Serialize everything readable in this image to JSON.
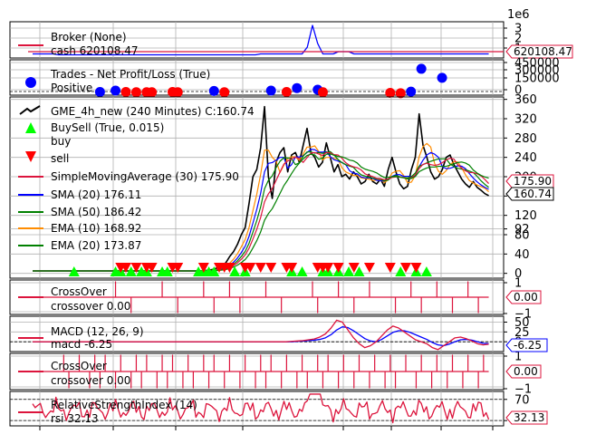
{
  "colors": {
    "broker": "#dc143c",
    "broker_value": "#0000ff",
    "trades_pos": "#0000ff",
    "trades_neg": "#ff0000",
    "close": "#000000",
    "buy": "#00ff00",
    "sell": "#ff0000",
    "sma30": "#dc143c",
    "sma20": "#0000ff",
    "sma50": "#008000",
    "ema10": "#ff8c00",
    "ema20": "#008000",
    "crossover": "#dc143c",
    "macd": "#dc143c",
    "macd_signal": "#0000ff",
    "rsi": "#dc143c",
    "grid": "#b0b0b0"
  },
  "chart_data": [
    {
      "type": "line",
      "panel": "broker",
      "legend": [
        "Broker (None)",
        "cash 620108.47"
      ],
      "offset_label": "1e6",
      "yticks": [
        "3",
        "2",
        "1"
      ],
      "ylim": [
        0,
        3.5
      ],
      "last_value_tag": "620108.47",
      "series": [
        {
          "name": "cash",
          "values_note": "flat ~0.62 (1e6) with spike near idx 54",
          "baseline": 0.62
        }
      ]
    },
    {
      "type": "scatter",
      "panel": "trades",
      "legend": [
        "Trades - Net Profit/Loss (True)",
        "Positive"
      ],
      "yticks": [
        "450000",
        "300000",
        "150000",
        "0"
      ],
      "ylim": [
        -50000,
        500000
      ],
      "positive": [
        {
          "x": 13,
          "y": 0
        },
        {
          "x": 16,
          "y": 20000
        },
        {
          "x": 35,
          "y": 15000
        },
        {
          "x": 46,
          "y": 20000
        },
        {
          "x": 51,
          "y": 60000
        },
        {
          "x": 55,
          "y": 35000
        },
        {
          "x": 73,
          "y": 5000
        },
        {
          "x": 75,
          "y": 360000
        },
        {
          "x": 79,
          "y": 220000
        }
      ],
      "negative": [
        {
          "x": 18,
          "y": 0
        },
        {
          "x": 20,
          "y": -5000
        },
        {
          "x": 22,
          "y": -5000
        },
        {
          "x": 23,
          "y": -5000
        },
        {
          "x": 27,
          "y": 0
        },
        {
          "x": 28,
          "y": -5000
        },
        {
          "x": 37,
          "y": -5000
        },
        {
          "x": 49,
          "y": 0
        },
        {
          "x": 56,
          "y": -5000
        },
        {
          "x": 69,
          "y": -15000
        },
        {
          "x": 71,
          "y": -20000
        }
      ]
    },
    {
      "type": "line",
      "panel": "main",
      "legend": [
        {
          "label": "GME_4h_new (240 Minutes) C:160.74",
          "kind": "line",
          "color_key": "close"
        },
        {
          "label": "BuySell (True, 0.015)",
          "kind": "tri-up",
          "color_key": "buy"
        },
        {
          "label": "buy",
          "kind": "none"
        },
        {
          "label": "sell",
          "kind": "tri-down",
          "color_key": "sell"
        },
        {
          "label": "SimpleMovingAverage (30) 175.90",
          "kind": "line",
          "color_key": "sma30"
        },
        {
          "label": "SMA (20) 176.11",
          "kind": "line",
          "color_key": "sma20"
        },
        {
          "label": "SMA (50) 186.42",
          "kind": "line",
          "color_key": "sma50"
        },
        {
          "label": "EMA (10) 168.92",
          "kind": "line",
          "color_key": "ema10"
        },
        {
          "label": "EMA (20) 173.87",
          "kind": "line",
          "color_key": "ema20"
        }
      ],
      "yticks": [
        "360",
        "320",
        "280",
        "240",
        "200",
        "160",
        "120",
        "92",
        "80",
        "40",
        "0"
      ],
      "ytick_values": [
        360,
        320,
        280,
        240,
        200,
        160,
        120,
        92,
        80,
        40,
        0
      ],
      "ylim": [
        -10,
        365
      ],
      "last_value_tags": [
        "175.90",
        "160.74"
      ],
      "close": [
        5,
        5,
        5,
        5,
        5,
        5,
        5,
        5,
        5,
        5,
        5,
        5,
        5,
        5,
        5,
        5,
        5,
        5,
        5,
        5,
        5,
        5,
        5,
        5,
        5,
        5,
        5,
        5,
        5,
        5,
        5,
        5,
        5,
        5,
        5,
        5,
        5,
        5,
        5,
        5,
        5,
        5,
        5,
        5,
        5,
        6,
        7,
        9,
        12,
        16,
        22,
        35,
        45,
        60,
        80,
        95,
        145,
        200,
        215,
        260,
        345,
        200,
        155,
        230,
        250,
        260,
        210,
        245,
        250,
        230,
        265,
        300,
        250,
        240,
        220,
        230,
        270,
        240,
        210,
        225,
        200,
        205,
        195,
        210,
        200,
        185,
        190,
        205,
        190,
        185,
        195,
        180,
        215,
        240,
        210,
        185,
        175,
        180,
        215,
        240,
        330,
        265,
        240,
        210,
        195,
        200,
        215,
        240,
        245,
        225,
        210,
        195,
        185,
        178,
        190,
        178,
        172,
        165,
        160.74
      ],
      "buy": [
        8,
        16,
        17,
        19,
        21,
        22,
        25,
        26,
        32,
        33,
        34,
        35,
        39,
        41,
        50,
        52,
        56,
        57,
        59,
        61,
        63,
        71,
        74,
        76
      ],
      "sell": [
        17,
        18,
        20,
        22,
        23,
        27,
        28,
        33,
        36,
        37,
        38,
        41,
        42,
        44,
        46,
        49,
        50,
        55,
        56,
        57,
        59,
        62,
        65,
        69,
        72,
        74
      ]
    },
    {
      "type": "line",
      "panel": "crossover1",
      "legend": [
        "CrossOver",
        "crossover 0.00"
      ],
      "yticks": [
        "1",
        "−1"
      ],
      "ylim": [
        -1,
        1
      ],
      "last_value_tag": "0.00",
      "spikes_up": [
        16,
        25,
        33,
        38,
        45,
        54,
        59,
        65,
        73,
        78,
        84
      ],
      "spikes_down": [
        19,
        28,
        35,
        40,
        48,
        55,
        62,
        70,
        75,
        81,
        86
      ]
    },
    {
      "type": "line",
      "panel": "macd",
      "legend": [
        "MACD (12, 26, 9)",
        "macd -6.25"
      ],
      "yticks": [
        "50",
        "25",
        "0"
      ],
      "ylim": [
        -25,
        65
      ],
      "last_value_tag": "-6.25",
      "macd": [
        0,
        0,
        0,
        0,
        0,
        0,
        0,
        0,
        0,
        0,
        0,
        0,
        0,
        0,
        0,
        0,
        0,
        0,
        0,
        0,
        0,
        0,
        0,
        0,
        0,
        0,
        0,
        0,
        0,
        0,
        0,
        0,
        0,
        0,
        0,
        0,
        0,
        0,
        0,
        0,
        0,
        0,
        0,
        0,
        0,
        0,
        1,
        2,
        3,
        5,
        7,
        12,
        20,
        35,
        55,
        50,
        30,
        10,
        -5,
        -15,
        -10,
        0,
        15,
        30,
        40,
        35,
        25,
        15,
        5,
        0,
        -5,
        -15,
        -20,
        -10,
        0,
        10,
        12,
        8,
        2,
        -5,
        -8,
        -6.25
      ],
      "signal": [
        0,
        0,
        0,
        0,
        0,
        0,
        0,
        0,
        0,
        0,
        0,
        0,
        0,
        0,
        0,
        0,
        0,
        0,
        0,
        0,
        0,
        0,
        0,
        0,
        0,
        0,
        0,
        0,
        0,
        0,
        0,
        0,
        0,
        0,
        0,
        0,
        0,
        0,
        0,
        0,
        0,
        0,
        0,
        0,
        0,
        0,
        0,
        1,
        2,
        3,
        4,
        6,
        10,
        18,
        30,
        38,
        36,
        28,
        18,
        8,
        2,
        0,
        6,
        15,
        24,
        28,
        28,
        24,
        18,
        12,
        6,
        -2,
        -8,
        -10,
        -6,
        0,
        5,
        6,
        4,
        0,
        -4,
        -5
      ]
    },
    {
      "type": "line",
      "panel": "crossover2",
      "legend": [
        "CrossOver",
        "crossover 0.00"
      ],
      "yticks": [
        "1",
        "−1"
      ],
      "ylim": [
        -1,
        1
      ],
      "last_value_tag": "0.00",
      "spikes_up": [
        6,
        9,
        12,
        14,
        17,
        20,
        22,
        25,
        27,
        30,
        33,
        35,
        38,
        41,
        44,
        46,
        49,
        52,
        55,
        57,
        60,
        63,
        66,
        69,
        72,
        75,
        78,
        81,
        84,
        87
      ],
      "spikes_down": [
        7,
        11,
        13,
        16,
        19,
        21,
        24,
        26,
        29,
        31,
        34,
        37,
        40,
        43,
        45,
        48,
        51,
        53,
        56,
        59,
        62,
        65,
        68,
        70,
        74,
        77,
        80,
        83,
        86
      ]
    },
    {
      "type": "line",
      "panel": "rsi",
      "legend": [
        "RelativeStrengthIndex (14)",
        "rsi 32.13"
      ],
      "yticks": [
        "70",
        "30"
      ],
      "ylim": [
        20,
        85
      ],
      "last_value_tag": "32.13"
    }
  ]
}
